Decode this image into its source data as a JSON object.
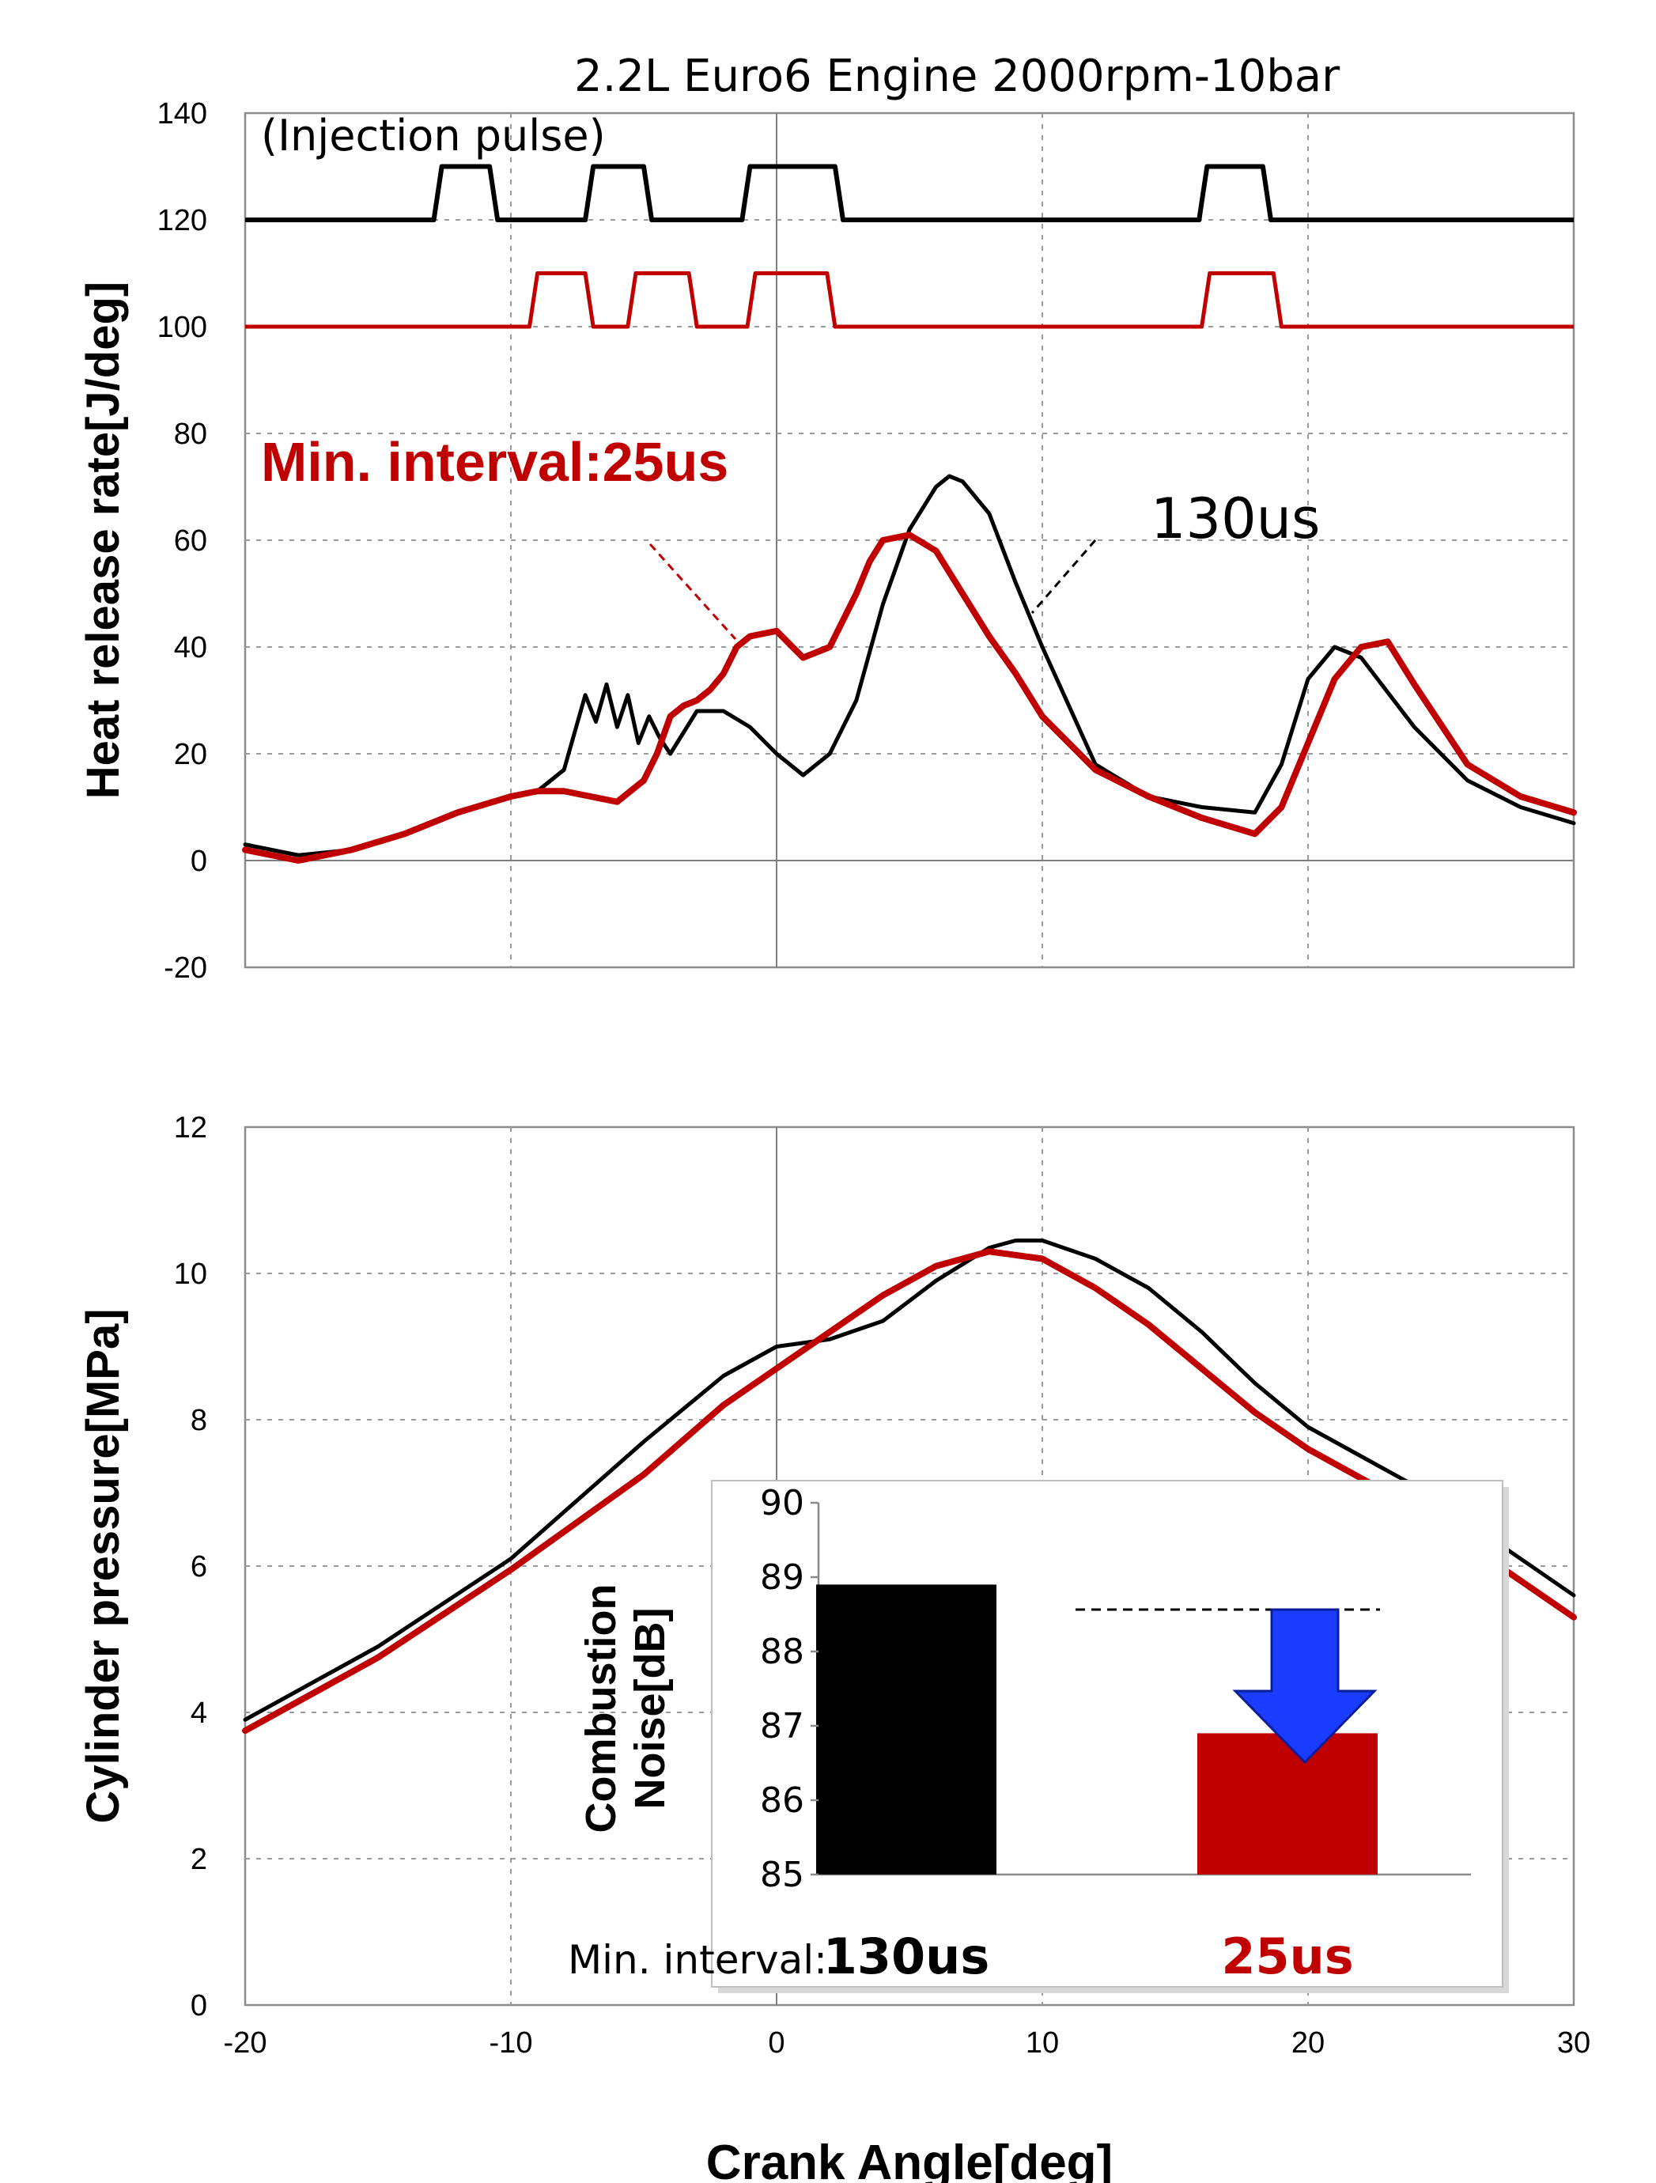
{
  "colors": {
    "black_series": "#000000",
    "red_series": "#c00000",
    "arrow": "#1a3cff"
  },
  "chart_data": [
    {
      "type": "line",
      "title": "2.2L Euro6 Engine 2000rpm-10bar",
      "ylabel": "Heat release rate[J/deg]",
      "xlim": [
        -20,
        30
      ],
      "ylim": [
        -20,
        140
      ],
      "xticks": [
        -20,
        -10,
        0,
        10,
        20,
        30
      ],
      "yticks": [
        "-20",
        "0",
        "20",
        "40",
        "60",
        "80",
        "100",
        "120",
        "140"
      ],
      "annotations": {
        "injection": "(Injection  pulse)",
        "red_label": "Min. interval:25us",
        "black_label": "130us"
      },
      "injection_pulses": [
        {
          "series": "130us",
          "base": 120,
          "high": 130,
          "pulses": [
            [
              -12.6,
              -10.8
            ],
            [
              -6.9,
              -5.0
            ],
            [
              -1.0,
              2.2
            ],
            [
              16.2,
              18.3
            ]
          ]
        },
        {
          "series": "25us",
          "base": 100,
          "high": 110,
          "pulses": [
            [
              -9.0,
              -7.2
            ],
            [
              -5.3,
              -3.3
            ],
            [
              -0.8,
              1.9
            ],
            [
              16.3,
              18.7
            ]
          ]
        }
      ],
      "series": [
        {
          "label": "130us",
          "color": "#000000",
          "x": [
            -20,
            -18,
            -16,
            -14,
            -12,
            -10,
            -9,
            -8,
            -7.6,
            -7.2,
            -6.8,
            -6.4,
            -6.0,
            -5.6,
            -5.2,
            -4.8,
            -4.4,
            -4,
            -3,
            -2,
            -1,
            0,
            1,
            2,
            3,
            4,
            5,
            6,
            6.5,
            7,
            8,
            9,
            10,
            12,
            14,
            16,
            18,
            19,
            20,
            21,
            22,
            24,
            26,
            28,
            30
          ],
          "y": [
            3,
            1,
            2,
            5,
            9,
            12,
            13,
            17,
            24,
            31,
            26,
            33,
            25,
            31,
            22,
            27,
            23,
            20,
            28,
            28,
            25,
            20,
            16,
            20,
            30,
            48,
            62,
            70,
            72,
            71,
            65,
            52,
            40,
            18,
            12,
            10,
            9,
            18,
            34,
            40,
            38,
            25,
            15,
            10,
            7
          ]
        },
        {
          "label": "25us",
          "color": "#c00000",
          "x": [
            -20,
            -18,
            -16,
            -14,
            -12,
            -10,
            -9,
            -8,
            -7,
            -6,
            -5,
            -4.5,
            -4,
            -3.5,
            -3,
            -2.5,
            -2,
            -1.5,
            -1,
            0,
            1,
            2,
            3,
            3.5,
            4,
            5,
            6,
            7,
            8,
            9,
            10,
            11,
            12,
            14,
            16,
            18,
            19,
            20,
            21,
            22,
            23,
            24,
            26,
            28,
            30
          ],
          "y": [
            2,
            0,
            2,
            5,
            9,
            12,
            13,
            13,
            12,
            11,
            15,
            20,
            27,
            29,
            30,
            32,
            35,
            40,
            42,
            43,
            38,
            40,
            50,
            56,
            60,
            61,
            58,
            50,
            42,
            35,
            27,
            22,
            17,
            12,
            8,
            5,
            10,
            22,
            34,
            40,
            41,
            33,
            18,
            12,
            9
          ]
        }
      ]
    },
    {
      "type": "line",
      "ylabel": "Cylinder pressure[MPa]",
      "xlabel": "Crank Angle[deg]",
      "xlim": [
        -20,
        30
      ],
      "ylim": [
        0,
        12
      ],
      "xticks": [
        "-20",
        "-10",
        "0",
        "10",
        "20",
        "30"
      ],
      "yticks": [
        "0",
        "2",
        "4",
        "6",
        "8",
        "10",
        "12"
      ],
      "series": [
        {
          "label": "130us",
          "color": "#000000",
          "x": [
            -20,
            -15,
            -10,
            -5,
            -2,
            0,
            2,
            4,
            6,
            8,
            9,
            10,
            12,
            14,
            16,
            18,
            20,
            22,
            24,
            26,
            28,
            30
          ],
          "y": [
            3.9,
            4.9,
            6.1,
            7.7,
            8.6,
            9.0,
            9.1,
            9.35,
            9.9,
            10.35,
            10.45,
            10.45,
            10.2,
            9.8,
            9.2,
            8.5,
            7.9,
            7.5,
            7.1,
            6.6,
            6.1,
            5.6
          ]
        },
        {
          "label": "25us",
          "color": "#c00000",
          "x": [
            -20,
            -15,
            -10,
            -5,
            -2,
            0,
            2,
            4,
            6,
            8,
            10,
            12,
            14,
            16,
            18,
            20,
            22,
            24,
            26,
            28,
            30
          ],
          "y": [
            3.75,
            4.75,
            5.95,
            7.25,
            8.2,
            8.7,
            9.2,
            9.7,
            10.1,
            10.3,
            10.2,
            9.8,
            9.3,
            8.7,
            8.1,
            7.6,
            7.2,
            6.8,
            6.3,
            5.8,
            5.3
          ]
        }
      ]
    },
    {
      "type": "bar",
      "ylabel": "Combustion\nNoise[dB]",
      "ylabel_line1": "Combustion",
      "ylabel_line2": "Noise[dB]",
      "xlabel_prefix": "Min. interval:",
      "categories": [
        "130us",
        "25us"
      ],
      "values": [
        88.9,
        86.9
      ],
      "bar_colors": [
        "#000000",
        "#c00000"
      ],
      "ylim": [
        85,
        90
      ],
      "yticks": [
        "85",
        "86",
        "87",
        "88",
        "89",
        "90"
      ]
    }
  ]
}
